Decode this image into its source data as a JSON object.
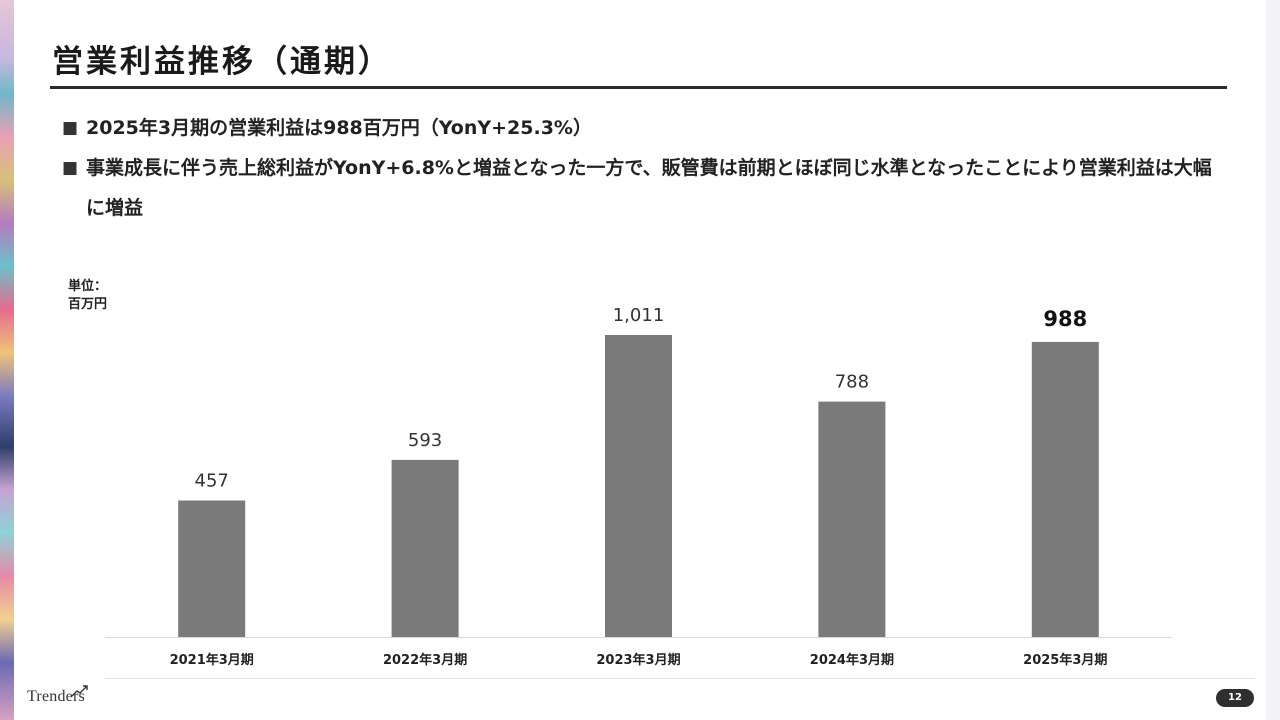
{
  "slide": {
    "title": "営業利益推移（通期）",
    "bullet_mark": "■",
    "bullets": [
      "2025年3月期の営業利益は988百万円（YonY+25.3%）",
      "事業成長に伴う売上総利益がYonY+6.8%と増益となった一方で、販管費は前期とほぼ同じ水準となったことにより営業利益は大幅に増益"
    ],
    "unit_line1": "単位：",
    "unit_line2": "百万円",
    "page_number": "12",
    "logo_text": "Trenders"
  },
  "chart_data": {
    "type": "bar",
    "title": "",
    "xlabel": "",
    "ylabel": "",
    "categories": [
      "2021年3月期",
      "2022年3月期",
      "2023年3月期",
      "2024年3月期",
      "2025年3月期"
    ],
    "values": [
      457,
      593,
      1011,
      788,
      988
    ],
    "value_labels": [
      "457",
      "593",
      "1,011",
      "788",
      "988"
    ],
    "highlight_index": 4,
    "ylim": [
      0,
      1011
    ],
    "grid": false,
    "bar_color": "#7a7a7a",
    "axis_color": "#d9d9d9"
  }
}
